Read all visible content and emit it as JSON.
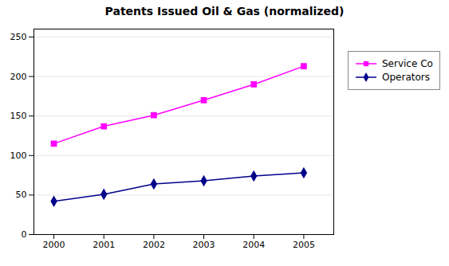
{
  "chart_data": {
    "type": "line",
    "title": "Patents Issued Oil & Gas (normalized)",
    "x": [
      2000,
      2001,
      2002,
      2003,
      2004,
      2005
    ],
    "series": [
      {
        "name": "Service Co",
        "color": "#FF00FF",
        "marker": "square",
        "values": [
          115,
          137,
          151,
          170,
          190,
          213
        ]
      },
      {
        "name": "Operators",
        "color": "#00008B",
        "marker": "diamond",
        "values": [
          42,
          51,
          64,
          68,
          74,
          78
        ]
      }
    ],
    "xlim": [
      1999.6,
      2005.6
    ],
    "xticks": [
      2000,
      2001,
      2002,
      2003,
      2004,
      2005
    ],
    "ylim": [
      0,
      260
    ],
    "yticks": [
      0,
      50,
      100,
      150,
      200,
      250
    ],
    "grid": true,
    "legend": "right"
  }
}
